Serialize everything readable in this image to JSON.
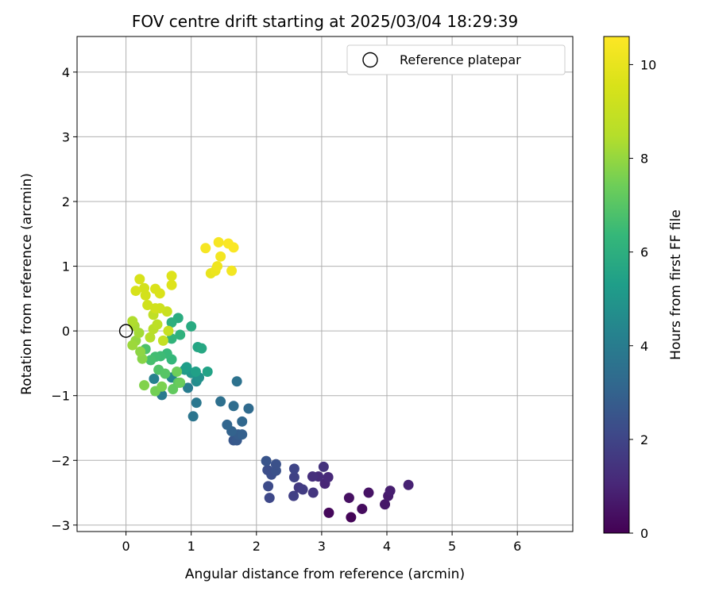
{
  "chart_data": {
    "type": "scatter",
    "title": "FOV centre drift starting at 2025/03/04 18:29:39",
    "xlabel": "Angular distance from reference (arcmin)",
    "ylabel": "Rotation from reference (arcmin)",
    "xlim": [
      -0.75,
      6.85
    ],
    "ylim": [
      -3.1,
      4.55
    ],
    "xticks": [
      0,
      1,
      2,
      3,
      4,
      5,
      6
    ],
    "yticks": [
      -3,
      -2,
      -1,
      0,
      1,
      2,
      3,
      4
    ],
    "xtick_labels": [
      "0",
      "1",
      "2",
      "3",
      "4",
      "5",
      "6"
    ],
    "ytick_labels": [
      "−3",
      "−2",
      "−1",
      "0",
      "1",
      "2",
      "3",
      "4"
    ],
    "grid": true,
    "legend": {
      "placement": "upper-right",
      "entries": [
        "Reference platepar"
      ]
    },
    "reference_point": {
      "x": 0,
      "y": 0,
      "label": "Reference platepar"
    },
    "colorbar": {
      "label": "Hours from first FF file",
      "colormap": "viridis",
      "range": [
        0,
        10.6
      ],
      "ticks": [
        0,
        2,
        4,
        6,
        8,
        10
      ],
      "tick_labels": [
        "0",
        "2",
        "4",
        "6",
        "8",
        "10"
      ]
    },
    "points": [
      {
        "x": 3.45,
        "y": -2.88,
        "h": 0.1
      },
      {
        "x": 3.11,
        "y": -2.81,
        "h": 0.2
      },
      {
        "x": 3.62,
        "y": -2.75,
        "h": 0.3
      },
      {
        "x": 3.42,
        "y": -2.58,
        "h": 0.4
      },
      {
        "x": 3.72,
        "y": -2.5,
        "h": 0.5
      },
      {
        "x": 3.97,
        "y": -2.68,
        "h": 0.6
      },
      {
        "x": 4.02,
        "y": -2.55,
        "h": 0.7
      },
      {
        "x": 4.05,
        "y": -2.47,
        "h": 0.8
      },
      {
        "x": 4.33,
        "y": -2.38,
        "h": 0.9
      },
      {
        "x": 3.05,
        "y": -2.36,
        "h": 1.0
      },
      {
        "x": 3.1,
        "y": -2.26,
        "h": 1.1
      },
      {
        "x": 2.95,
        "y": -2.25,
        "h": 1.2
      },
      {
        "x": 2.86,
        "y": -2.25,
        "h": 1.3
      },
      {
        "x": 3.03,
        "y": -2.1,
        "h": 1.4
      },
      {
        "x": 2.87,
        "y": -2.5,
        "h": 1.5
      },
      {
        "x": 2.65,
        "y": -2.42,
        "h": 1.6
      },
      {
        "x": 2.71,
        "y": -2.45,
        "h": 1.7
      },
      {
        "x": 2.57,
        "y": -2.55,
        "h": 1.8
      },
      {
        "x": 2.58,
        "y": -2.26,
        "h": 1.9
      },
      {
        "x": 2.58,
        "y": -2.13,
        "h": 2.0
      },
      {
        "x": 2.2,
        "y": -2.58,
        "h": 2.1
      },
      {
        "x": 2.18,
        "y": -2.4,
        "h": 2.2
      },
      {
        "x": 2.17,
        "y": -2.15,
        "h": 2.3
      },
      {
        "x": 2.23,
        "y": -2.22,
        "h": 2.3
      },
      {
        "x": 2.3,
        "y": -2.16,
        "h": 2.4
      },
      {
        "x": 2.3,
        "y": -2.06,
        "h": 2.4
      },
      {
        "x": 2.15,
        "y": -2.01,
        "h": 2.5
      },
      {
        "x": 1.65,
        "y": -1.69,
        "h": 2.6
      },
      {
        "x": 1.7,
        "y": -1.69,
        "h": 2.7
      },
      {
        "x": 1.72,
        "y": -1.6,
        "h": 2.8
      },
      {
        "x": 1.78,
        "y": -1.6,
        "h": 2.9
      },
      {
        "x": 1.62,
        "y": -1.55,
        "h": 3.0
      },
      {
        "x": 1.55,
        "y": -1.45,
        "h": 3.1
      },
      {
        "x": 1.78,
        "y": -1.4,
        "h": 3.2
      },
      {
        "x": 1.88,
        "y": -1.2,
        "h": 3.3
      },
      {
        "x": 1.65,
        "y": -1.16,
        "h": 3.4
      },
      {
        "x": 1.45,
        "y": -1.09,
        "h": 3.5
      },
      {
        "x": 1.7,
        "y": -0.78,
        "h": 3.6
      },
      {
        "x": 1.03,
        "y": -1.32,
        "h": 3.7
      },
      {
        "x": 1.08,
        "y": -1.11,
        "h": 3.8
      },
      {
        "x": 0.55,
        "y": -0.99,
        "h": 3.9
      },
      {
        "x": 0.95,
        "y": -0.88,
        "h": 4.0
      },
      {
        "x": 0.43,
        "y": -0.74,
        "h": 4.2
      },
      {
        "x": 0.7,
        "y": -0.72,
        "h": 4.4
      },
      {
        "x": 1.08,
        "y": -0.78,
        "h": 4.6
      },
      {
        "x": 1.12,
        "y": -0.72,
        "h": 4.8
      },
      {
        "x": 1.0,
        "y": -0.65,
        "h": 5.0
      },
      {
        "x": 0.9,
        "y": -0.6,
        "h": 5.2
      },
      {
        "x": 0.93,
        "y": -0.56,
        "h": 5.3
      },
      {
        "x": 1.07,
        "y": -0.63,
        "h": 5.4
      },
      {
        "x": 1.25,
        "y": -0.63,
        "h": 5.5
      },
      {
        "x": 1.1,
        "y": -0.25,
        "h": 5.6
      },
      {
        "x": 1.16,
        "y": -0.27,
        "h": 5.7
      },
      {
        "x": 1.0,
        "y": 0.07,
        "h": 5.8
      },
      {
        "x": 0.8,
        "y": 0.2,
        "h": 5.9
      },
      {
        "x": 0.7,
        "y": 0.13,
        "h": 6.0
      },
      {
        "x": 0.83,
        "y": -0.06,
        "h": 6.1
      },
      {
        "x": 0.7,
        "y": -0.12,
        "h": 6.2
      },
      {
        "x": 0.7,
        "y": -0.44,
        "h": 6.3
      },
      {
        "x": 0.63,
        "y": -0.35,
        "h": 6.4
      },
      {
        "x": 0.53,
        "y": -0.39,
        "h": 6.5
      },
      {
        "x": 0.45,
        "y": -0.4,
        "h": 6.6
      },
      {
        "x": 0.38,
        "y": -0.45,
        "h": 6.7
      },
      {
        "x": 0.3,
        "y": -0.28,
        "h": 6.8
      },
      {
        "x": 0.5,
        "y": -0.6,
        "h": 6.9
      },
      {
        "x": 0.6,
        "y": -0.66,
        "h": 7.0
      },
      {
        "x": 0.8,
        "y": -0.8,
        "h": 7.1
      },
      {
        "x": 0.72,
        "y": -0.9,
        "h": 7.2
      },
      {
        "x": 0.83,
        "y": -0.8,
        "h": 7.3
      },
      {
        "x": 0.78,
        "y": -0.63,
        "h": 7.4
      },
      {
        "x": 0.45,
        "y": -0.93,
        "h": 7.5
      },
      {
        "x": 0.55,
        "y": -0.86,
        "h": 7.6
      },
      {
        "x": 0.28,
        "y": -0.84,
        "h": 7.7
      },
      {
        "x": 0.25,
        "y": -0.43,
        "h": 7.8
      },
      {
        "x": 0.22,
        "y": -0.32,
        "h": 7.9
      },
      {
        "x": 0.15,
        "y": -0.15,
        "h": 8.0
      },
      {
        "x": 0.1,
        "y": -0.22,
        "h": 8.1
      },
      {
        "x": 0.2,
        "y": -0.03,
        "h": 8.2
      },
      {
        "x": 0.13,
        "y": 0.08,
        "h": 8.3
      },
      {
        "x": 0.1,
        "y": 0.15,
        "h": 8.4
      },
      {
        "x": 0.37,
        "y": -0.1,
        "h": 8.5
      },
      {
        "x": 0.42,
        "y": 0.03,
        "h": 8.6
      },
      {
        "x": 0.48,
        "y": 0.1,
        "h": 8.7
      },
      {
        "x": 0.42,
        "y": 0.25,
        "h": 8.8
      },
      {
        "x": 0.57,
        "y": -0.15,
        "h": 8.9
      },
      {
        "x": 0.65,
        "y": 0.0,
        "h": 9.0
      },
      {
        "x": 0.63,
        "y": 0.3,
        "h": 9.1
      },
      {
        "x": 0.52,
        "y": 0.35,
        "h": 9.2
      },
      {
        "x": 0.45,
        "y": 0.35,
        "h": 9.3
      },
      {
        "x": 0.33,
        "y": 0.4,
        "h": 9.3
      },
      {
        "x": 0.3,
        "y": 0.55,
        "h": 9.4
      },
      {
        "x": 0.28,
        "y": 0.66,
        "h": 9.4
      },
      {
        "x": 0.15,
        "y": 0.62,
        "h": 9.5
      },
      {
        "x": 0.21,
        "y": 0.8,
        "h": 9.5
      },
      {
        "x": 0.45,
        "y": 0.65,
        "h": 9.6
      },
      {
        "x": 0.52,
        "y": 0.58,
        "h": 9.6
      },
      {
        "x": 0.7,
        "y": 0.71,
        "h": 9.7
      },
      {
        "x": 0.7,
        "y": 0.85,
        "h": 9.7
      },
      {
        "x": 1.3,
        "y": 0.89,
        "h": 10.0
      },
      {
        "x": 1.37,
        "y": 0.93,
        "h": 10.1
      },
      {
        "x": 1.4,
        "y": 1.0,
        "h": 10.2
      },
      {
        "x": 1.45,
        "y": 1.15,
        "h": 10.3
      },
      {
        "x": 1.62,
        "y": 0.93,
        "h": 10.3
      },
      {
        "x": 1.22,
        "y": 1.28,
        "h": 10.4
      },
      {
        "x": 1.42,
        "y": 1.37,
        "h": 10.4
      },
      {
        "x": 1.57,
        "y": 1.35,
        "h": 10.5
      },
      {
        "x": 1.65,
        "y": 1.29,
        "h": 10.5
      }
    ]
  }
}
